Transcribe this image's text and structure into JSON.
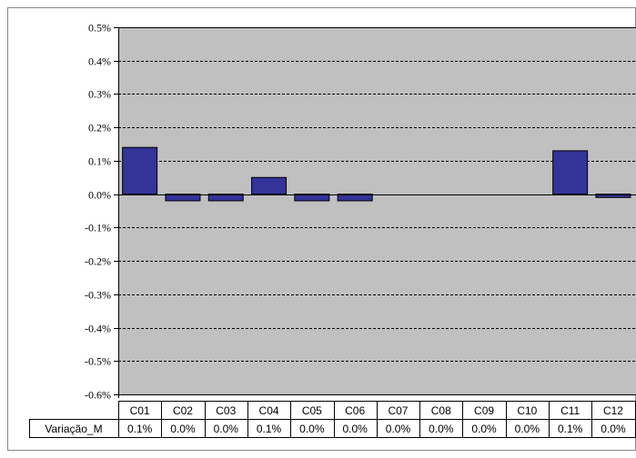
{
  "chart_data": {
    "type": "bar",
    "categories": [
      "C01",
      "C02",
      "C03",
      "C04",
      "C05",
      "C06",
      "C07",
      "C08",
      "C09",
      "C10",
      "C11",
      "C12"
    ],
    "series": [
      {
        "name": "Variação_M",
        "values": [
          0.14,
          -0.02,
          -0.02,
          0.05,
          -0.02,
          -0.02,
          0.0,
          0.0,
          0.0,
          0.0,
          0.13,
          -0.01
        ],
        "table_labels": [
          "0.1%",
          "0.0%",
          "0.0%",
          "0.1%",
          "0.0%",
          "0.0%",
          "0.0%",
          "0.0%",
          "0.0%",
          "0.0%",
          "0.1%",
          "0.0%"
        ]
      }
    ],
    "yticks": [
      "0.5%",
      "0.4%",
      "0.3%",
      "0.2%",
      "0.1%",
      "0.0%",
      "-0.1%",
      "-0.2%",
      "-0.3%",
      "-0.4%",
      "-0.5%",
      "-0.6%"
    ],
    "ylim": [
      -0.6,
      0.5
    ],
    "y_unit": "%",
    "grid": true,
    "data_table": true,
    "colors": {
      "plot_background": "#c0c0c0",
      "bar_fill": "#333399",
      "bar_stroke": "#000000",
      "grid": "#000000"
    }
  }
}
